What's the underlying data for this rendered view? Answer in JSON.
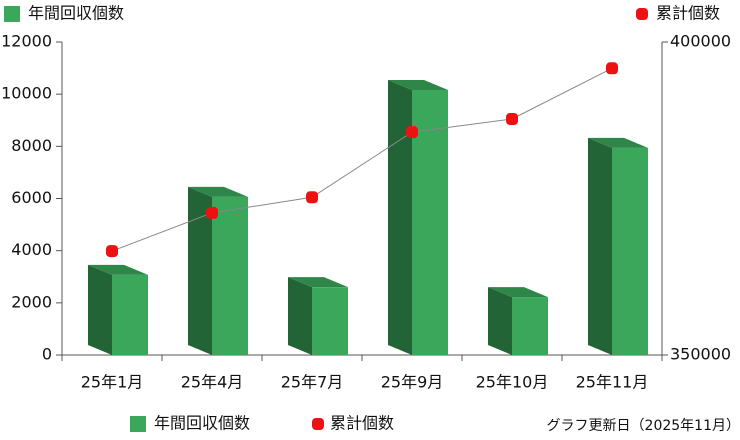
{
  "chart_data": {
    "type": "bar_line",
    "categories": [
      "25年1月",
      "25年4月",
      "25年7月",
      "25年9月",
      "25年10月",
      "25年11月"
    ],
    "series": [
      {
        "name": "年間回収個数",
        "color": "#3aa75a",
        "values": [
          3070,
          6060,
          2600,
          10160,
          2220,
          7940
        ]
      },
      {
        "name": "累計個数",
        "color": "#ee1111",
        "axis": "y2",
        "values": [
          366600,
          372700,
          375200,
          385600,
          387700,
          395800
        ]
      }
    ],
    "ylim": [
      0,
      12000
    ],
    "yticks": [
      0,
      2000,
      4000,
      6000,
      8000,
      10000,
      12000
    ],
    "y2lim": [
      350000,
      400000
    ],
    "y2ticks": [
      350000,
      400000
    ],
    "note": "グラフ更新日（2025年11月）"
  }
}
